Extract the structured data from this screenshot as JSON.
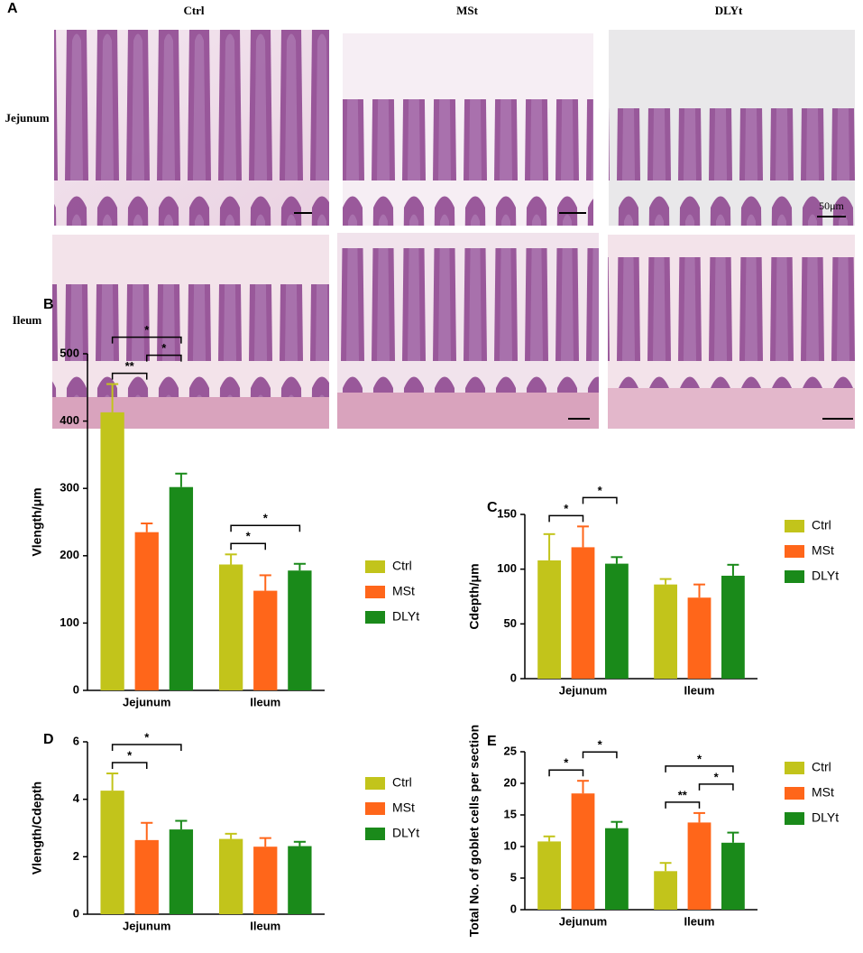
{
  "panel_a": {
    "label": "A",
    "columns": [
      "Ctrl",
      "MSt",
      "DLYt"
    ],
    "rows": [
      "Jejunum",
      "Ileum"
    ],
    "scale_label": "50μm"
  },
  "chart_data": [
    {
      "panel": "B",
      "type": "bar",
      "ylabel": "Vlength/μm",
      "categories": [
        "Jejunum",
        "Ileum"
      ],
      "series": [
        {
          "name": "Ctrl",
          "color": "#c2c41b",
          "values": [
            413,
            187
          ],
          "errors": [
            42,
            15
          ]
        },
        {
          "name": "MSt",
          "color": "#ff661a",
          "values": [
            235,
            148
          ],
          "errors": [
            13,
            23
          ]
        },
        {
          "name": "DLYt",
          "color": "#1a8a1a",
          "values": [
            302,
            178
          ],
          "errors": [
            20,
            10
          ]
        }
      ],
      "ylim": [
        0,
        500
      ],
      "yticks": [
        0,
        100,
        200,
        300,
        400,
        500
      ],
      "annotations": [
        {
          "text": "**",
          "category": 0,
          "pair": [
            0,
            1
          ]
        },
        {
          "text": "*",
          "category": 0,
          "pair": [
            1,
            2
          ]
        },
        {
          "text": "*",
          "category": 0,
          "pair": [
            0,
            2
          ]
        },
        {
          "text": "*",
          "category": 1,
          "pair": [
            0,
            1
          ]
        },
        {
          "text": "*",
          "category": 1,
          "pair": [
            0,
            2
          ]
        }
      ]
    },
    {
      "panel": "C",
      "type": "bar",
      "ylabel": "Cdepth/μm",
      "categories": [
        "Jejunum",
        "Ileum"
      ],
      "series": [
        {
          "name": "Ctrl",
          "color": "#c2c41b",
          "values": [
            108,
            86
          ],
          "errors": [
            24,
            5
          ]
        },
        {
          "name": "MSt",
          "color": "#ff661a",
          "values": [
            120,
            74
          ],
          "errors": [
            19,
            12
          ]
        },
        {
          "name": "DLYt",
          "color": "#1a8a1a",
          "values": [
            105,
            94
          ],
          "errors": [
            6,
            10
          ]
        }
      ],
      "ylim": [
        0,
        150
      ],
      "yticks": [
        0,
        50,
        100,
        150
      ],
      "annotations": [
        {
          "text": "*",
          "category": 0,
          "pair": [
            0,
            1
          ]
        },
        {
          "text": "*",
          "category": 0,
          "pair": [
            1,
            2
          ]
        }
      ]
    },
    {
      "panel": "D",
      "type": "bar",
      "ylabel": "Vlength/Cdepth",
      "categories": [
        "Jejunum",
        "Ileum"
      ],
      "series": [
        {
          "name": "Ctrl",
          "color": "#c2c41b",
          "values": [
            4.3,
            2.62
          ],
          "errors": [
            0.6,
            0.18
          ]
        },
        {
          "name": "MSt",
          "color": "#ff661a",
          "values": [
            2.58,
            2.35
          ],
          "errors": [
            0.6,
            0.3
          ]
        },
        {
          "name": "DLYt",
          "color": "#1a8a1a",
          "values": [
            2.95,
            2.37
          ],
          "errors": [
            0.3,
            0.15
          ]
        }
      ],
      "ylim": [
        0,
        6
      ],
      "yticks": [
        0,
        2,
        4,
        6
      ],
      "annotations": [
        {
          "text": "*",
          "category": 0,
          "pair": [
            0,
            1
          ]
        },
        {
          "text": "*",
          "category": 0,
          "pair": [
            0,
            2
          ]
        }
      ]
    },
    {
      "panel": "E",
      "type": "bar",
      "ylabel": "Total No. of goblet cells per section",
      "categories": [
        "Jejunum",
        "Ileum"
      ],
      "series": [
        {
          "name": "Ctrl",
          "color": "#c2c41b",
          "values": [
            10.8,
            6.1
          ],
          "errors": [
            0.8,
            1.3
          ]
        },
        {
          "name": "MSt",
          "color": "#ff661a",
          "values": [
            18.4,
            13.8
          ],
          "errors": [
            2,
            1.5
          ]
        },
        {
          "name": "DLYt",
          "color": "#1a8a1a",
          "values": [
            12.9,
            10.6
          ],
          "errors": [
            1,
            1.6
          ]
        }
      ],
      "ylim": [
        0,
        25
      ],
      "yticks": [
        0,
        5,
        10,
        15,
        20,
        25
      ],
      "annotations": [
        {
          "text": "*",
          "category": 0,
          "pair": [
            0,
            1
          ]
        },
        {
          "text": "*",
          "category": 0,
          "pair": [
            1,
            2
          ]
        },
        {
          "text": "**",
          "category": 1,
          "pair": [
            0,
            1
          ]
        },
        {
          "text": "*",
          "category": 1,
          "pair": [
            1,
            2
          ]
        },
        {
          "text": "*",
          "category": 1,
          "pair": [
            0,
            2
          ]
        }
      ]
    }
  ]
}
